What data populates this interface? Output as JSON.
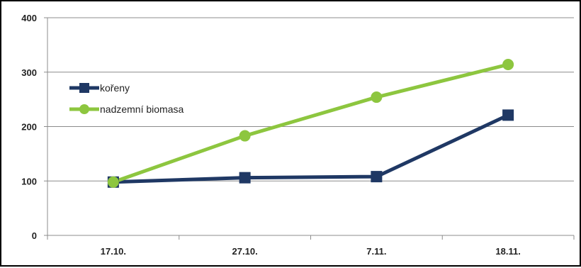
{
  "chart_data": {
    "type": "line",
    "categories": [
      "17.10.",
      "27.10.",
      "7.11.",
      "18.11."
    ],
    "series": [
      {
        "name": "kořeny",
        "values": [
          98,
          106,
          108,
          221
        ],
        "color": "#1f3864",
        "marker": "square"
      },
      {
        "name": "nadzemní biomasa",
        "values": [
          98,
          183,
          254,
          314
        ],
        "color": "#8dc63f",
        "marker": "circle"
      }
    ],
    "ylim": [
      0,
      400
    ],
    "yticks": [
      0,
      100,
      200,
      300,
      400
    ],
    "grid": true,
    "legend_position": "left-middle",
    "title": "",
    "xlabel": "",
    "ylabel": ""
  }
}
